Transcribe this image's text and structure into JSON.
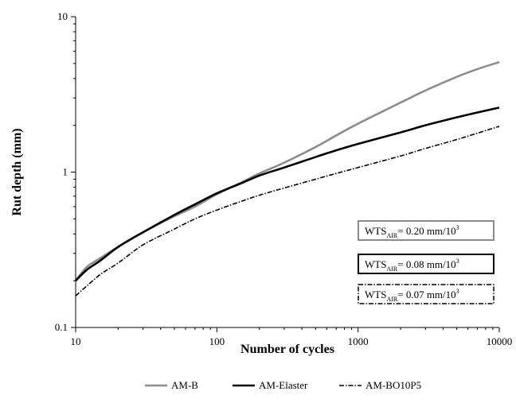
{
  "chart_data": {
    "type": "line",
    "xlabel": "Number of cycles",
    "ylabel": "Rut depth (mm)",
    "x_scale": "log",
    "y_scale": "log",
    "xlim": [
      10,
      10000
    ],
    "ylim": [
      0.1,
      10
    ],
    "x_ticks": [
      "10",
      "100",
      "1000",
      "10000"
    ],
    "y_ticks": [
      "0.1",
      "1",
      "10"
    ],
    "grid": false,
    "legend_placement": "bottom",
    "series": [
      {
        "name": "AM-B",
        "color": "#8c8c8c",
        "style": "solid",
        "x": [
          10,
          12,
          15,
          20,
          30,
          50,
          70,
          100,
          150,
          200,
          300,
          500,
          700,
          1000,
          2000,
          3000,
          5000,
          7000,
          10000
        ],
        "y": [
          0.2,
          0.245,
          0.28,
          0.33,
          0.41,
          0.52,
          0.6,
          0.72,
          0.86,
          0.98,
          1.15,
          1.45,
          1.72,
          2.05,
          2.8,
          3.35,
          4.1,
          4.6,
          5.1
        ]
      },
      {
        "name": "AM-Elaster",
        "color": "#000000",
        "style": "solid",
        "x": [
          10,
          12,
          15,
          20,
          30,
          50,
          70,
          100,
          150,
          200,
          300,
          500,
          700,
          1000,
          2000,
          3000,
          5000,
          7000,
          10000
        ],
        "y": [
          0.2,
          0.235,
          0.27,
          0.33,
          0.41,
          0.53,
          0.62,
          0.73,
          0.85,
          0.95,
          1.07,
          1.25,
          1.38,
          1.52,
          1.8,
          2.0,
          2.25,
          2.42,
          2.6
        ]
      },
      {
        "name": "AM-BO10P5",
        "color": "#000000",
        "style": "dash-dot",
        "x": [
          10,
          12,
          15,
          20,
          30,
          50,
          70,
          100,
          150,
          200,
          300,
          500,
          700,
          1000,
          2000,
          3000,
          5000,
          7000,
          10000
        ],
        "y": [
          0.16,
          0.185,
          0.22,
          0.26,
          0.34,
          0.43,
          0.5,
          0.57,
          0.65,
          0.71,
          0.79,
          0.9,
          0.98,
          1.07,
          1.27,
          1.42,
          1.62,
          1.78,
          1.97
        ]
      }
    ],
    "annotations": [
      {
        "prefix": "WTS",
        "subscript": "AIR",
        "text": "= 0.20 mm/10",
        "superscript": "3",
        "border_color": "#8c8c8c",
        "border_style": "solid"
      },
      {
        "prefix": "WTS",
        "subscript": "AIR",
        "text": "= 0.08 mm/10",
        "superscript": "3",
        "border_color": "#000000",
        "border_style": "solid"
      },
      {
        "prefix": "WTS",
        "subscript": "AIR",
        "text": "= 0.07 mm/10",
        "superscript": "3",
        "border_color": "#000000",
        "border_style": "dash-dot"
      }
    ]
  }
}
